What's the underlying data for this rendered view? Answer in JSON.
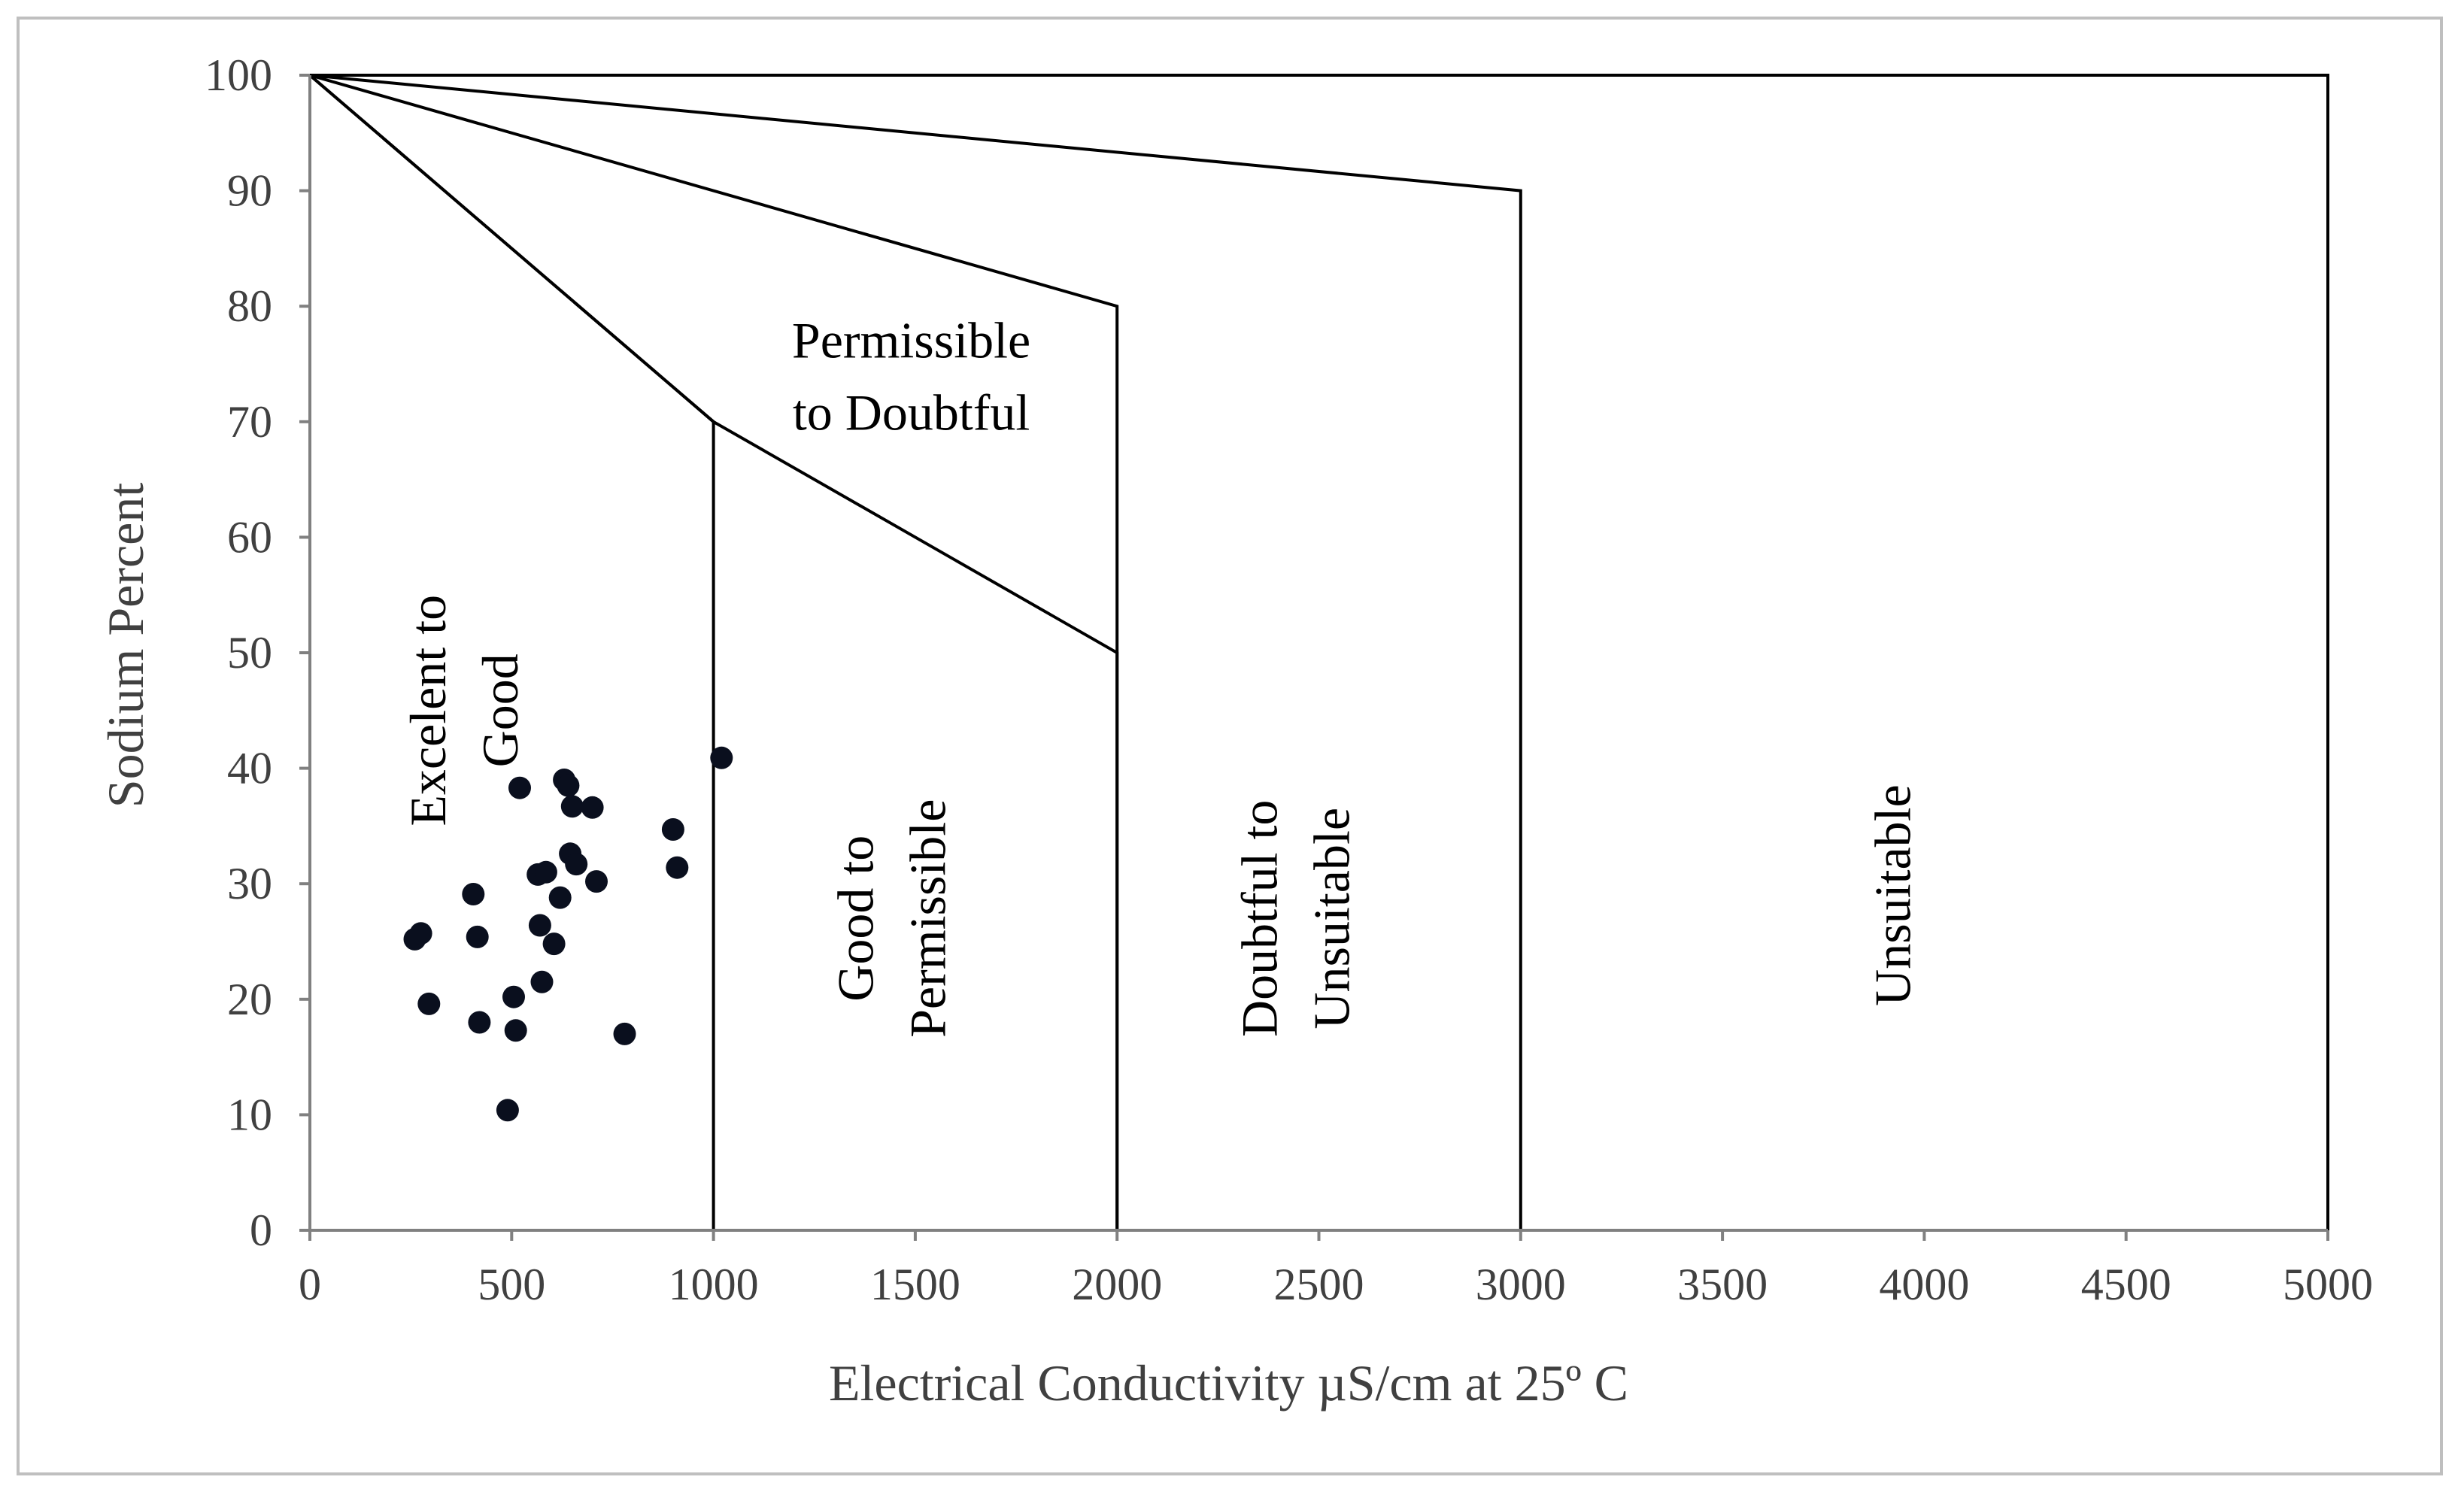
{
  "chart_data": {
    "type": "scatter",
    "title": "",
    "xlabel": "Electrical  Conductivity  µS/cm  at 25º C",
    "ylabel": "Sodium  Percent",
    "xlim": [
      0,
      5000
    ],
    "ylim": [
      0,
      100
    ],
    "xticks": [
      "0",
      "500",
      "1000",
      "1500",
      "2000",
      "2500",
      "3000",
      "3500",
      "4000",
      "4500",
      "5000"
    ],
    "yticks": [
      "0",
      "10",
      "20",
      "30",
      "40",
      "50",
      "60",
      "70",
      "80",
      "90",
      "100"
    ],
    "boundaries": [
      {
        "name": "excellent-good",
        "points": [
          [
            0,
            100
          ],
          [
            1000,
            70
          ],
          [
            1000,
            0
          ]
        ]
      },
      {
        "name": "good-permissible",
        "points": [
          [
            0,
            100
          ],
          [
            1000,
            70
          ],
          [
            2000,
            50
          ],
          [
            2000,
            0
          ]
        ]
      },
      {
        "name": "permissible-doubtful",
        "points": [
          [
            0,
            100
          ],
          [
            2000,
            80
          ],
          [
            2000,
            0
          ]
        ]
      },
      {
        "name": "doubtful-unsuitable",
        "points": [
          [
            0,
            100
          ],
          [
            3000,
            90
          ],
          [
            3000,
            0
          ]
        ]
      },
      {
        "name": "outer-limit",
        "points": [
          [
            0,
            100
          ],
          [
            5000,
            100
          ],
          [
            5000,
            0
          ]
        ]
      }
    ],
    "zones": [
      {
        "lines": [
          "Excelent  to",
          "Good"
        ],
        "x": 380,
        "y": 45,
        "rotate": -90
      },
      {
        "lines": [
          "Good to",
          "Permissible"
        ],
        "x": 1440,
        "y": 27,
        "rotate": -90
      },
      {
        "lines": [
          "Permissible",
          "to Doubtful"
        ],
        "x": 1490,
        "y": 74,
        "rotate": 0
      },
      {
        "lines": [
          "Doubtful  to",
          "Unsuitable"
        ],
        "x": 2440,
        "y": 27,
        "rotate": -90
      },
      {
        "lines": [
          "Unsuitable"
        ],
        "x": 3920,
        "y": 29,
        "rotate": -90
      }
    ],
    "series": [
      {
        "name": "samples",
        "x": [
          260,
          275,
          295,
          405,
          415,
          420,
          490,
          505,
          510,
          520,
          565,
          570,
          575,
          585,
          605,
          620,
          630,
          640,
          645,
          650,
          660,
          700,
          710,
          780,
          900,
          910,
          1020
        ],
        "y": [
          25.2,
          25.7,
          19.6,
          29.1,
          25.4,
          18.0,
          10.4,
          20.2,
          17.3,
          38.3,
          30.8,
          26.4,
          21.5,
          31.0,
          24.8,
          28.8,
          39.0,
          38.5,
          32.6,
          36.7,
          31.7,
          36.6,
          30.2,
          17.0,
          34.7,
          31.4,
          40.9
        ]
      }
    ]
  }
}
